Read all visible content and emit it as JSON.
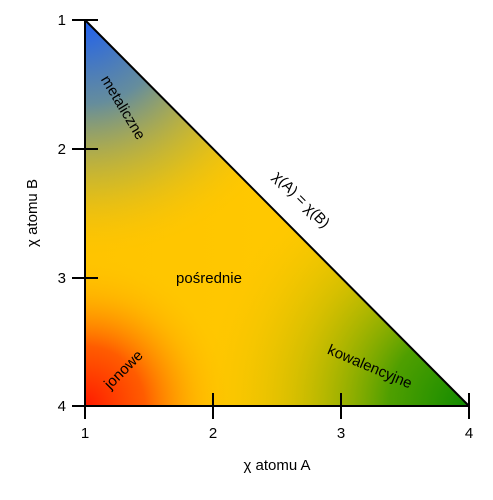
{
  "diagram": {
    "x_axis": {
      "label": "χ atomu A",
      "ticks": [
        "1",
        "2",
        "3",
        "4"
      ]
    },
    "y_axis": {
      "label": "χ atomu B",
      "ticks": [
        "1",
        "2",
        "3",
        "4"
      ]
    },
    "diagonal_label": "χ(A) = χ(B)",
    "regions": {
      "metallic": "metaliczne",
      "intermediate": "pośrednie",
      "ionic": "jonowe",
      "covalent": "kowalencyjne"
    },
    "colors": {
      "metallic": "#1f63e8",
      "intermediate": "#ffc800",
      "ionic": "#ff2a00",
      "covalent": "#128c00",
      "axis": "#000000"
    }
  }
}
